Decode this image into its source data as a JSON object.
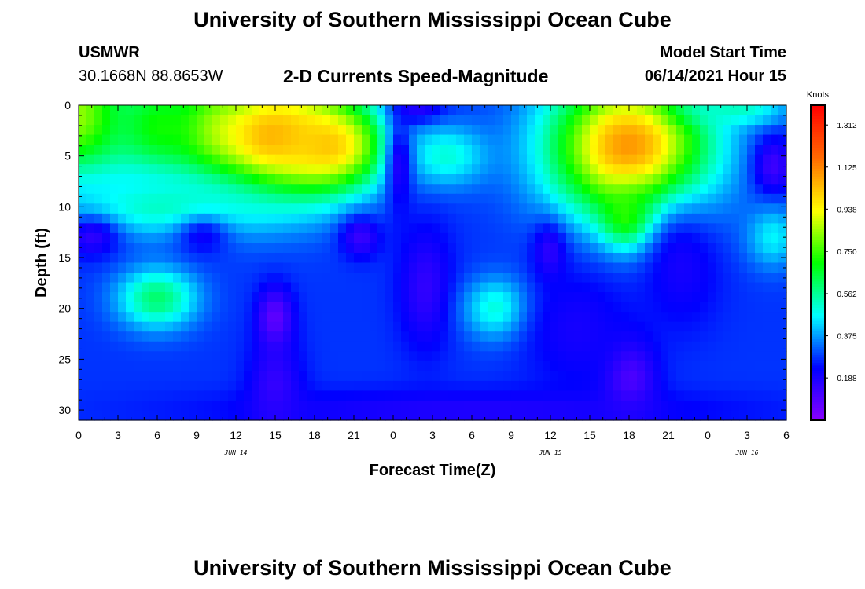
{
  "header": {
    "title": "University of Southern Mississippi Ocean Cube",
    "station_name": "USMWR",
    "station_coords": "30.1668N  88.8653W",
    "plot_title": "2-D Currents Speed-Magnitude",
    "model_start_label": "Model Start Time",
    "model_start_value": "06/14/2021 Hour 15"
  },
  "footer": {
    "title": "University of Southern Mississippi Ocean Cube"
  },
  "chart_data": {
    "type": "heatmap",
    "title": "2-D Currents Speed-Magnitude",
    "xlabel": "Forecast Time(Z)",
    "ylabel": "Depth (ft)",
    "x_tick_labels": [
      "0",
      "3",
      "6",
      "9",
      "12",
      "15",
      "18",
      "21",
      "0",
      "3",
      "6",
      "9",
      "12",
      "15",
      "18",
      "21",
      "0",
      "3",
      "6"
    ],
    "x_hours": [
      0,
      3,
      6,
      9,
      12,
      15,
      18,
      21,
      24,
      27,
      30,
      33,
      36,
      39,
      42,
      45,
      48,
      51,
      54
    ],
    "date_labels": [
      {
        "label": "JUN 14",
        "hour": 12
      },
      {
        "label": "JUN 15",
        "hour": 36
      },
      {
        "label": "JUN 16",
        "hour": 51
      }
    ],
    "xlim": [
      0,
      54
    ],
    "y_tick_labels": [
      "0",
      "5",
      "10",
      "15",
      "20",
      "25",
      "30"
    ],
    "y_ticks": [
      0,
      5,
      10,
      15,
      20,
      25,
      30
    ],
    "ylim": [
      0,
      31
    ],
    "y_inverted": true,
    "colorbar": {
      "label": "Knots",
      "tick_labels": [
        "1.312",
        "1.125",
        "0.938",
        "0.750",
        "0.562",
        "0.375",
        "0.188"
      ],
      "ticks": [
        1.312,
        1.125,
        0.938,
        0.75,
        0.562,
        0.375,
        0.188
      ],
      "vmin": 0.0,
      "vmax": 1.4,
      "colors": [
        "#8a00ff",
        "#0000ff",
        "#00ffff",
        "#00ff00",
        "#ffff00",
        "#ff6a00",
        "#ff0000"
      ]
    },
    "base_speed": 0.28,
    "features": [
      {
        "t": 0,
        "d": 1,
        "rt": 4,
        "rd": 6,
        "speed": 0.85
      },
      {
        "t": 6,
        "d": 2,
        "rt": 4,
        "rd": 5,
        "speed": 0.68
      },
      {
        "t": 10,
        "d": 2,
        "rt": 3,
        "rd": 4,
        "speed": 0.62
      },
      {
        "t": 15,
        "d": 3,
        "rt": 6,
        "rd": 6,
        "speed": 1.06
      },
      {
        "t": 19,
        "d": 4,
        "rt": 4,
        "rd": 4,
        "speed": 1.02
      },
      {
        "t": 7,
        "d": 10,
        "rt": 8,
        "rd": 3,
        "speed": 0.52
      },
      {
        "t": 6,
        "d": 19,
        "rt": 3,
        "rd": 3,
        "speed": 0.6
      },
      {
        "t": 1,
        "d": 13,
        "rt": 2,
        "rd": 2,
        "speed": 0.16
      },
      {
        "t": 9.5,
        "d": 13,
        "rt": 2,
        "rd": 2,
        "speed": 0.22
      },
      {
        "t": 21.5,
        "d": 13,
        "rt": 1.5,
        "rd": 2,
        "speed": 0.14
      },
      {
        "t": 15,
        "d": 21,
        "rt": 1.3,
        "rd": 3,
        "speed": 0.06
      },
      {
        "t": 15,
        "d": 28,
        "rt": 2,
        "rd": 5,
        "speed": 0.14
      },
      {
        "t": 26,
        "d": 0.5,
        "rt": 2,
        "rd": 1.5,
        "speed": 0.16
      },
      {
        "t": 28,
        "d": 5,
        "rt": 3,
        "rd": 3,
        "speed": 0.5
      },
      {
        "t": 24.5,
        "d": 6,
        "rt": 1,
        "rd": 5,
        "speed": 0.18
      },
      {
        "t": 26.5,
        "d": 18,
        "rt": 2,
        "rd": 6,
        "speed": 0.15
      },
      {
        "t": 32,
        "d": 20,
        "rt": 2.5,
        "rd": 3,
        "speed": 0.52
      },
      {
        "t": 36,
        "d": 14,
        "rt": 1.3,
        "rd": 3,
        "speed": 0.11
      },
      {
        "t": 42,
        "d": 4,
        "rt": 6,
        "rd": 7,
        "speed": 1.1
      },
      {
        "t": 42,
        "d": 11,
        "rt": 2,
        "rd": 3,
        "speed": 0.78
      },
      {
        "t": 42,
        "d": 27,
        "rt": 2,
        "rd": 4,
        "speed": 0.08
      },
      {
        "t": 38,
        "d": 22,
        "rt": 4,
        "rd": 6,
        "speed": 0.2
      },
      {
        "t": 46,
        "d": 16,
        "rt": 3,
        "rd": 6,
        "speed": 0.2
      },
      {
        "t": 53,
        "d": 6,
        "rt": 1.5,
        "rd": 3,
        "speed": 0.13
      },
      {
        "t": 53,
        "d": 13,
        "rt": 2,
        "rd": 3,
        "speed": 0.46
      },
      {
        "t": 50,
        "d": 0.5,
        "rt": 4,
        "rd": 1.5,
        "speed": 0.52
      },
      {
        "t": 30,
        "d": 30,
        "rt": 20,
        "rd": 2,
        "speed": 0.18
      }
    ]
  }
}
